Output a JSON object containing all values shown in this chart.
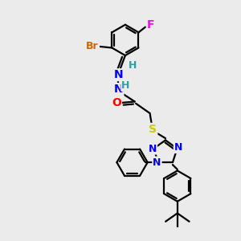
{
  "background_color": "#ebebeb",
  "atom_colors": {
    "C": "#000000",
    "H": "#2aa0a0",
    "N": "#0000ee",
    "O": "#ff0000",
    "S": "#cccc00",
    "Br": "#cc6600",
    "F": "#ff00ff"
  },
  "bond_color": "#000000",
  "bond_width": 1.6,
  "font_size_atom": 10,
  "font_size_small": 8
}
